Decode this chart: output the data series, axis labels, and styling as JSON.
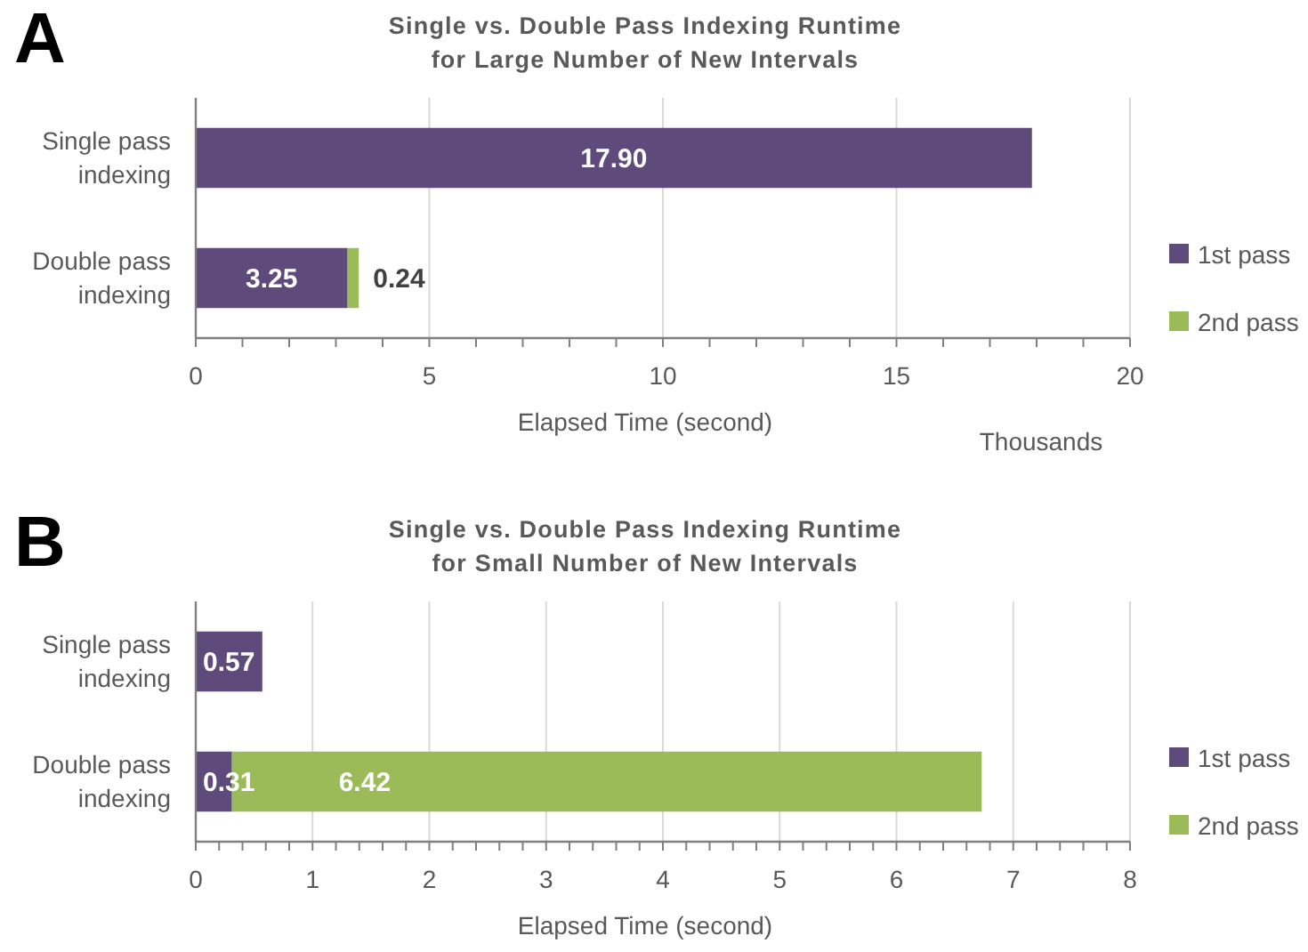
{
  "chart_data": [
    {
      "type": "bar",
      "orientation": "horizontal",
      "stacked": true,
      "title": "Single vs. Double Pass Indexing Runtime\nfor Large Number of New Intervals",
      "xlabel": "Elapsed Time (second)",
      "categories": [
        "Single pass indexing",
        "Double pass indexing"
      ],
      "series": [
        {
          "name": "1st pass",
          "color": "#5f4b7b",
          "values": [
            17.9,
            3.25
          ],
          "value_labels": [
            "17.90",
            "3.25"
          ]
        },
        {
          "name": "2nd pass",
          "color": "#9bbb59",
          "values": [
            null,
            0.24
          ],
          "value_labels": [
            null,
            "0.24"
          ]
        }
      ],
      "xlim": [
        0,
        20
      ],
      "xticks": [
        0,
        {
          "value": 1,
          "label": null
        },
        {
          "value": 2,
          "label": null
        },
        {
          "value": 3,
          "label": null
        },
        {
          "value": 4,
          "label": null
        },
        5,
        {
          "value": 6,
          "label": null
        },
        {
          "value": 7,
          "label": null
        },
        {
          "value": 8,
          "label": null
        },
        {
          "value": 9,
          "label": null
        },
        10,
        {
          "value": 11,
          "label": null
        },
        {
          "value": 12,
          "label": null
        },
        {
          "value": 13,
          "label": null
        },
        {
          "value": 14,
          "label": null
        },
        15,
        {
          "value": 16,
          "label": null
        },
        {
          "value": 17,
          "label": null
        },
        {
          "value": 18,
          "label": null
        },
        {
          "value": 19,
          "label": null
        },
        20
      ],
      "grid": "x",
      "legend": "right",
      "annotations": [
        "A",
        "Thousands"
      ]
    },
    {
      "type": "bar",
      "orientation": "horizontal",
      "stacked": true,
      "title": "Single vs. Double Pass Indexing Runtime\nfor Small Number of New Intervals",
      "xlabel": "Elapsed Time (second)",
      "categories": [
        "Single pass indexing",
        "Double pass indexing"
      ],
      "series": [
        {
          "name": "1st pass",
          "color": "#5f4b7b",
          "values": [
            0.57,
            0.31
          ],
          "value_labels": [
            "0.57",
            "0.31"
          ]
        },
        {
          "name": "2nd pass",
          "color": "#9bbb59",
          "values": [
            null,
            6.42
          ],
          "value_labels": [
            null,
            "6.42"
          ]
        }
      ],
      "xlim": [
        0,
        8
      ],
      "xticks": [
        0,
        {
          "value": 0.2,
          "label": null
        },
        {
          "value": 0.4,
          "label": null
        },
        {
          "value": 0.6,
          "label": null
        },
        {
          "value": 0.8,
          "label": null
        },
        1,
        {
          "value": 1.2,
          "label": null
        },
        {
          "value": 1.4,
          "label": null
        },
        {
          "value": 1.6,
          "label": null
        },
        {
          "value": 1.8,
          "label": null
        },
        2,
        {
          "value": 2.2,
          "label": null
        },
        {
          "value": 2.4,
          "label": null
        },
        {
          "value": 2.6,
          "label": null
        },
        {
          "value": 2.8,
          "label": null
        },
        3,
        {
          "value": 3.2,
          "label": null
        },
        {
          "value": 3.4,
          "label": null
        },
        {
          "value": 3.6,
          "label": null
        },
        {
          "value": 3.8,
          "label": null
        },
        4,
        {
          "value": 4.2,
          "label": null
        },
        {
          "value": 4.4,
          "label": null
        },
        {
          "value": 4.6,
          "label": null
        },
        {
          "value": 4.8,
          "label": null
        },
        5,
        {
          "value": 5.2,
          "label": null
        },
        {
          "value": 5.4,
          "label": null
        },
        {
          "value": 5.6,
          "label": null
        },
        {
          "value": 5.8,
          "label": null
        },
        6,
        {
          "value": 6.2,
          "label": null
        },
        {
          "value": 6.4,
          "label": null
        },
        {
          "value": 6.6,
          "label": null
        },
        {
          "value": 6.8,
          "label": null
        },
        7,
        {
          "value": 7.2,
          "label": null
        },
        {
          "value": 7.4,
          "label": null
        },
        {
          "value": 7.6,
          "label": null
        },
        {
          "value": 7.8,
          "label": null
        },
        8
      ],
      "grid": "x",
      "legend": "right",
      "annotations": [
        "B"
      ]
    }
  ]
}
